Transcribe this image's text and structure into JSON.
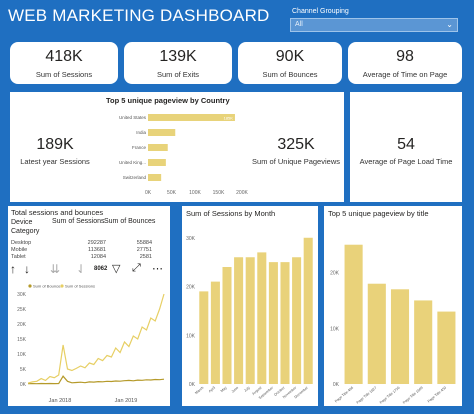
{
  "header": {
    "title": "WEB MARKETING DASHBOARD"
  },
  "slicer": {
    "label": "Channel Grouping",
    "value": "All"
  },
  "kpis": [
    {
      "value": "418K",
      "label": "Sum of Sessions"
    },
    {
      "value": "139K",
      "label": "Sum of Exits"
    },
    {
      "value": "90K",
      "label": "Sum of Bounces"
    },
    {
      "value": "98",
      "label": "Average of Time on Page"
    }
  ],
  "middle": {
    "latest": {
      "value": "189K",
      "label": "Latest year Sessions"
    },
    "unique": {
      "value": "325K",
      "label": "Sum of Unique Pageviews"
    },
    "load": {
      "value": "54",
      "label": "Average of Page Load Time"
    }
  },
  "table": {
    "title": "Total sessions and bounces",
    "headers": [
      "Device Category",
      "Sum of Sessions",
      "Sum of Bounces"
    ],
    "rows": [
      [
        "Desktop",
        "292287",
        "55884"
      ],
      [
        "Mobile",
        "113681",
        "27751"
      ],
      [
        "Tablet",
        "12084",
        "2581"
      ]
    ],
    "total_value": "8062"
  },
  "chart_data": [
    {
      "type": "bar",
      "orientation": "horizontal",
      "title": "Top 5 unique pageview by Country",
      "categories": [
        "United States",
        "India",
        "France",
        "United King...",
        "Switzerland"
      ],
      "values": [
        185,
        58,
        42,
        38,
        28
      ],
      "data_labels": [
        "185K",
        "",
        "",
        "",
        ""
      ],
      "xticks": [
        "0K",
        "50K",
        "100K",
        "150K",
        "200K"
      ],
      "xlim": [
        0,
        200
      ],
      "color": "#e8d37a"
    },
    {
      "type": "line",
      "series": [
        {
          "name": "Sum of Bounces",
          "color": "#b59a2a",
          "values": [
            100,
            120,
            110,
            150,
            130,
            160,
            140,
            180,
            2600,
            900,
            400,
            500,
            600,
            450,
            700,
            620,
            800,
            750,
            900,
            850,
            1000,
            950,
            1100,
            1200,
            1050,
            1300,
            1250,
            1400,
            1350,
            1500,
            1450,
            1600
          ]
        },
        {
          "name": "Sum of Sessions",
          "color": "#e7cf64",
          "values": [
            300,
            700,
            900,
            1800,
            1200,
            2500,
            2100,
            3000,
            13000,
            5000,
            4500,
            5200,
            6000,
            5400,
            7000,
            6500,
            8500,
            7800,
            9500,
            9000,
            12000,
            10500,
            14000,
            12500,
            16000,
            15000,
            19000,
            18000,
            22000,
            21000,
            25000,
            30000
          ]
        }
      ],
      "xticks": [
        "Jan 2018",
        "Jan 2019"
      ],
      "yticks": [
        "0K",
        "5K",
        "10K",
        "15K",
        "20K",
        "25K",
        "30K"
      ],
      "ylim": [
        0,
        30000
      ]
    },
    {
      "type": "bar",
      "title": "Sum of Sessions by Month",
      "categories": [
        "March",
        "April",
        "May",
        "June",
        "July",
        "August",
        "September",
        "October",
        "November",
        "December"
      ],
      "values": [
        19,
        21,
        24,
        26,
        26,
        27,
        25,
        25,
        26,
        30
      ],
      "yticks": [
        "0K",
        "10K",
        "20K",
        "30K"
      ],
      "ylim": [
        0,
        32
      ],
      "color": "#e9d27a"
    },
    {
      "type": "bar",
      "title": "Top 5 unique pageview by title",
      "categories": [
        "Page Title 496",
        "Page Title 1827",
        "Page Title 1736",
        "Page Title 1609",
        "Page Title 450"
      ],
      "values": [
        25,
        18,
        17,
        15,
        13
      ],
      "yticks": [
        "0K",
        "10K",
        "20K"
      ],
      "ylim": [
        0,
        28
      ],
      "color": "#e9d27a"
    }
  ],
  "icons": {
    "toolbar": [
      "up-arrow-icon",
      "down-arrow-icon",
      "drill-down-icon",
      "expand-icon",
      "filter-icon",
      "focus-icon",
      "more-icon"
    ]
  }
}
